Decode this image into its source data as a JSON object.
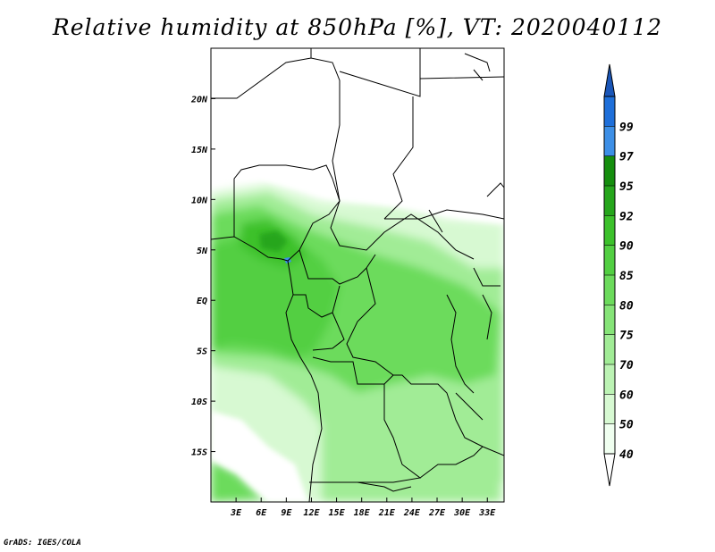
{
  "title": "Relative humidity at 850hPa [%], VT: 2020040112",
  "credit": "GrADS: IGES/COLA",
  "map": {
    "lon_range": [
      0,
      35
    ],
    "lat_range": [
      -20,
      25
    ],
    "lon_ticks": [
      {
        "value": 3,
        "label": "3E"
      },
      {
        "value": 6,
        "label": "6E"
      },
      {
        "value": 9,
        "label": "9E"
      },
      {
        "value": 12,
        "label": "12E"
      },
      {
        "value": 15,
        "label": "15E"
      },
      {
        "value": 18,
        "label": "18E"
      },
      {
        "value": 21,
        "label": "21E"
      },
      {
        "value": 24,
        "label": "24E"
      },
      {
        "value": 27,
        "label": "27E"
      },
      {
        "value": 30,
        "label": "30E"
      },
      {
        "value": 33,
        "label": "33E"
      }
    ],
    "lat_ticks": [
      {
        "value": 20,
        "label": "20N"
      },
      {
        "value": 15,
        "label": "15N"
      },
      {
        "value": 10,
        "label": "10N"
      },
      {
        "value": 5,
        "label": "5N"
      },
      {
        "value": 0,
        "label": "EQ"
      },
      {
        "value": -5,
        "label": "5S"
      },
      {
        "value": -10,
        "label": "10S"
      },
      {
        "value": -15,
        "label": "15S"
      }
    ]
  },
  "colorbar": {
    "levels": [
      {
        "label": "40",
        "color": "#f0fff0"
      },
      {
        "label": "50",
        "color": "#d7f9d2"
      },
      {
        "label": "60",
        "color": "#bcf3b4"
      },
      {
        "label": "70",
        "color": "#a1ec96"
      },
      {
        "label": "75",
        "color": "#86e478"
      },
      {
        "label": "80",
        "color": "#6cdb5c"
      },
      {
        "label": "85",
        "color": "#52cf42"
      },
      {
        "label": "90",
        "color": "#3cc12b"
      },
      {
        "label": "92",
        "color": "#26a61c"
      },
      {
        "label": "95",
        "color": "#158e0e"
      },
      {
        "label": "97",
        "color": "#3d8fe6"
      },
      {
        "label": "99",
        "color": "#1e6fd9"
      }
    ],
    "top_color": "#1a56b8",
    "bottom_color": "#ffffff"
  },
  "colors": {
    "boundary": "#000000",
    "frame": "#000000"
  }
}
